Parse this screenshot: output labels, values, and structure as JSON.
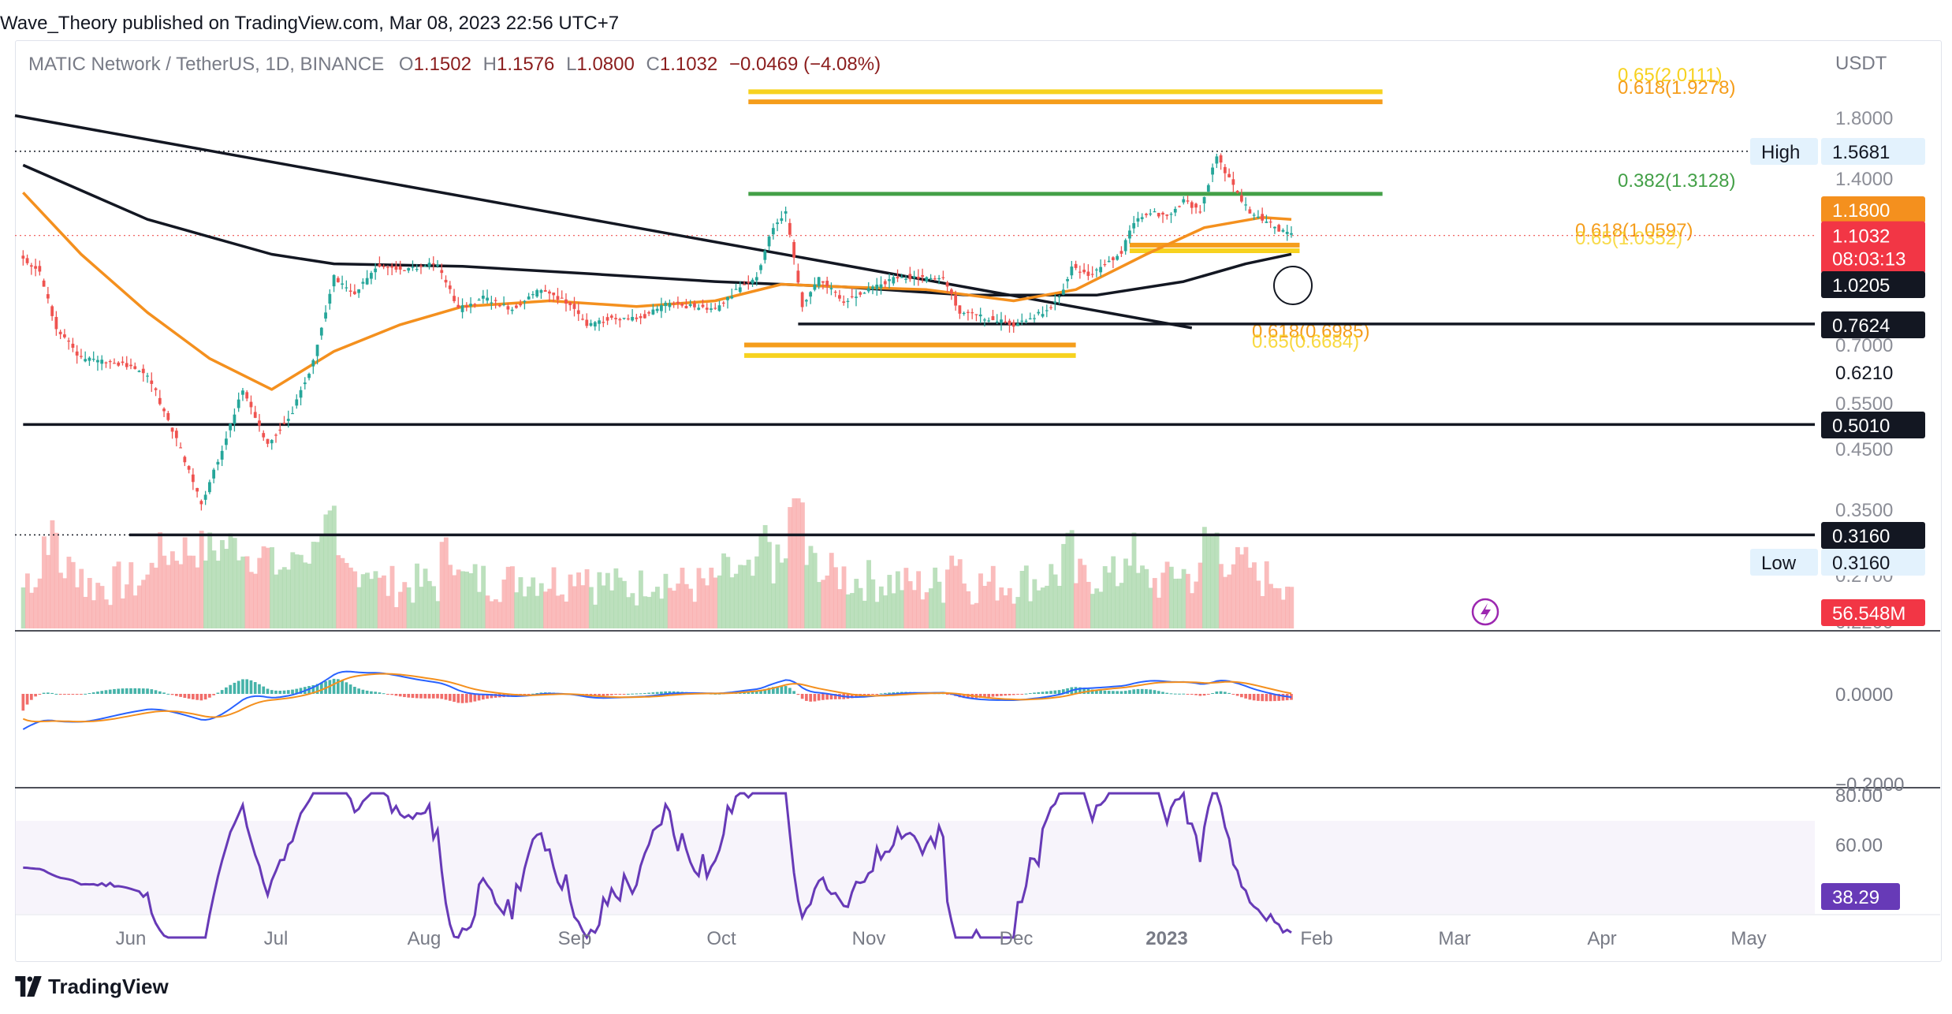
{
  "header": {
    "publisher": "Wave_Theory published on TradingView.com, Mar 08, 2023 22:56 UTC+7"
  },
  "ohlc_bar": {
    "symbol": "MATIC Network / TetherUS, 1D, BINANCE",
    "open_label": "O",
    "open": "1.1502",
    "high_label": "H",
    "high": "1.1576",
    "low_label": "L",
    "low": "1.0800",
    "close_label": "C",
    "close": "1.1032",
    "change": "−0.0469 (−4.08%)"
  },
  "price_axis": {
    "currency": "USDT",
    "ticks": [
      "1.8000",
      "1.4000",
      "0.7000",
      "0.5500",
      "0.4500",
      "0.3500",
      "0.2700",
      "0.2200"
    ],
    "plain_labels": [
      {
        "text": "0.6210",
        "price": 0.621
      }
    ],
    "tags": [
      {
        "name": "high",
        "prefix": "High",
        "text": "1.5681",
        "price": 1.5681,
        "style": "light"
      },
      {
        "name": "ema-orange",
        "text": "1.1800",
        "price": 1.18,
        "style": "orange"
      },
      {
        "name": "last-price",
        "text": "1.1032",
        "sub": "08:03:13",
        "price": 1.1032,
        "style": "red"
      },
      {
        "name": "ma-200",
        "text": "1.0205",
        "price": 1.0205,
        "style": "dark"
      },
      {
        "name": "support-0.7624",
        "text": "0.7624",
        "price": 0.7624,
        "style": "dark"
      },
      {
        "name": "support-0.5010",
        "text": "0.5010",
        "price": 0.501,
        "style": "dark"
      },
      {
        "name": "support-0.3160",
        "text": "0.3160",
        "price": 0.316,
        "style": "dark"
      },
      {
        "name": "low",
        "prefix": "Low",
        "text": "0.3160",
        "price": 0.316,
        "style": "light"
      },
      {
        "name": "volume",
        "text": "56.548M",
        "style": "red-vol"
      }
    ]
  },
  "macd_axis": {
    "ticks": [
      "0.0000",
      "−0.2000"
    ]
  },
  "rsi_axis": {
    "ticks": [
      "80.00",
      "60.00"
    ],
    "value_tag": "38.29"
  },
  "time_axis": {
    "labels": [
      "Jun",
      "Jul",
      "Aug",
      "Sep",
      "Oct",
      "Nov",
      "Dec",
      "2023",
      "Feb",
      "Mar",
      "Apr",
      "May"
    ]
  },
  "fib_labels": [
    {
      "text": "0.65(2.0111)",
      "color": "#f5c518"
    },
    {
      "text": "0.618(1.9278)",
      "color": "#f59d1b"
    },
    {
      "text": "0.382(1.3128)",
      "color": "#43a047"
    },
    {
      "text": "0.618(1.0597)",
      "color": "#f59d1b"
    },
    {
      "text": "0.65(1.0352)",
      "color": "#f5c518"
    },
    {
      "text": "0.618(0.6985)",
      "color": "#f59d1b"
    },
    {
      "text": "0.65(0.6684)",
      "color": "#f5c518"
    }
  ],
  "brand": {
    "name": "TradingView"
  },
  "colors": {
    "up": "#26a69a",
    "down": "#ef5350",
    "ema": "#f4901e",
    "ma": "#131722",
    "fib_gold": "#f7d21f",
    "fib_orange": "#f59d1b",
    "fib_green": "#43a047",
    "macd": "#2962ff",
    "signal": "#f4901e",
    "rsi": "#673ab7",
    "vol_up": "#a5d6a7",
    "vol_down": "#f8a5a5"
  },
  "chart_data": {
    "type": "candlestick",
    "symbol": "MATIC Network / TetherUS",
    "timeframe": "1D",
    "exchange": "BINANCE",
    "y_axis_label": "USDT",
    "ohlc_last": {
      "open": 1.1502,
      "high": 1.1576,
      "low": 1.08,
      "close": 1.1032,
      "change": -0.0469,
      "change_pct": -4.08
    },
    "x_range": [
      "2023-05-08",
      "2023-05-31"
    ],
    "price_path": [
      {
        "date": "2022-05-06",
        "close": 1.0
      },
      {
        "date": "2022-05-10",
        "close": 0.95
      },
      {
        "date": "2022-05-14",
        "close": 0.75
      },
      {
        "date": "2022-05-20",
        "close": 0.66
      },
      {
        "date": "2022-05-28",
        "close": 0.65
      },
      {
        "date": "2022-06-05",
        "close": 0.62
      },
      {
        "date": "2022-06-12",
        "close": 0.47
      },
      {
        "date": "2022-06-18",
        "close": 0.36
      },
      {
        "date": "2022-06-22",
        "close": 0.43
      },
      {
        "date": "2022-06-28",
        "close": 0.58
      },
      {
        "date": "2022-07-04",
        "close": 0.46
      },
      {
        "date": "2022-07-10",
        "close": 0.53
      },
      {
        "date": "2022-07-15",
        "close": 0.65
      },
      {
        "date": "2022-07-20",
        "close": 0.93
      },
      {
        "date": "2022-07-25",
        "close": 0.86
      },
      {
        "date": "2022-07-30",
        "close": 0.97
      },
      {
        "date": "2022-08-06",
        "close": 0.96
      },
      {
        "date": "2022-08-14",
        "close": 0.98
      },
      {
        "date": "2022-08-19",
        "close": 0.81
      },
      {
        "date": "2022-08-25",
        "close": 0.85
      },
      {
        "date": "2022-09-01",
        "close": 0.81
      },
      {
        "date": "2022-09-08",
        "close": 0.88
      },
      {
        "date": "2022-09-15",
        "close": 0.83
      },
      {
        "date": "2022-09-19",
        "close": 0.76
      },
      {
        "date": "2022-09-25",
        "close": 0.78
      },
      {
        "date": "2022-10-02",
        "close": 0.78
      },
      {
        "date": "2022-10-08",
        "close": 0.83
      },
      {
        "date": "2022-10-14",
        "close": 0.82
      },
      {
        "date": "2022-10-20",
        "close": 0.81
      },
      {
        "date": "2022-10-26",
        "close": 0.89
      },
      {
        "date": "2022-10-30",
        "close": 0.93
      },
      {
        "date": "2022-11-02",
        "close": 1.1
      },
      {
        "date": "2022-11-06",
        "close": 1.22
      },
      {
        "date": "2022-11-08",
        "close": 1.0
      },
      {
        "date": "2022-11-10",
        "close": 0.82
      },
      {
        "date": "2022-11-14",
        "close": 0.92
      },
      {
        "date": "2022-11-20",
        "close": 0.84
      },
      {
        "date": "2022-11-27",
        "close": 0.89
      },
      {
        "date": "2022-12-04",
        "close": 0.93
      },
      {
        "date": "2022-12-10",
        "close": 0.92
      },
      {
        "date": "2022-12-14",
        "close": 0.93
      },
      {
        "date": "2022-12-18",
        "close": 0.8
      },
      {
        "date": "2022-12-25",
        "close": 0.78
      },
      {
        "date": "2022-12-31",
        "close": 0.76
      },
      {
        "date": "2023-01-07",
        "close": 0.8
      },
      {
        "date": "2023-01-11",
        "close": 0.85
      },
      {
        "date": "2023-01-14",
        "close": 0.97
      },
      {
        "date": "2023-01-18",
        "close": 0.93
      },
      {
        "date": "2023-01-22",
        "close": 0.98
      },
      {
        "date": "2023-01-26",
        "close": 1.03
      },
      {
        "date": "2023-01-29",
        "close": 1.17
      },
      {
        "date": "2023-02-02",
        "close": 1.22
      },
      {
        "date": "2023-02-06",
        "close": 1.19
      },
      {
        "date": "2023-02-10",
        "close": 1.28
      },
      {
        "date": "2023-02-14",
        "close": 1.22
      },
      {
        "date": "2023-02-18",
        "close": 1.54
      },
      {
        "date": "2023-02-22",
        "close": 1.35
      },
      {
        "date": "2023-02-26",
        "close": 1.22
      },
      {
        "date": "2023-03-02",
        "close": 1.17
      },
      {
        "date": "2023-03-05",
        "close": 1.13
      },
      {
        "date": "2023-03-08",
        "close": 1.1032
      }
    ],
    "ema_path": [
      {
        "date": "2022-05-06",
        "value": 1.32
      },
      {
        "date": "2022-05-20",
        "value": 1.02
      },
      {
        "date": "2022-06-05",
        "value": 0.8
      },
      {
        "date": "2022-06-20",
        "value": 0.66
      },
      {
        "date": "2022-07-05",
        "value": 0.58
      },
      {
        "date": "2022-07-20",
        "value": 0.68
      },
      {
        "date": "2022-08-05",
        "value": 0.76
      },
      {
        "date": "2022-08-20",
        "value": 0.82
      },
      {
        "date": "2022-09-10",
        "value": 0.84
      },
      {
        "date": "2022-10-01",
        "value": 0.82
      },
      {
        "date": "2022-10-20",
        "value": 0.84
      },
      {
        "date": "2022-11-05",
        "value": 0.9
      },
      {
        "date": "2022-11-20",
        "value": 0.89
      },
      {
        "date": "2022-12-10",
        "value": 0.88
      },
      {
        "date": "2022-12-31",
        "value": 0.84
      },
      {
        "date": "2023-01-15",
        "value": 0.88
      },
      {
        "date": "2023-02-01",
        "value": 1.02
      },
      {
        "date": "2023-02-15",
        "value": 1.14
      },
      {
        "date": "2023-03-01",
        "value": 1.19
      },
      {
        "date": "2023-03-08",
        "value": 1.18
      }
    ],
    "ma_path": [
      {
        "date": "2022-05-06",
        "value": 1.48
      },
      {
        "date": "2022-06-05",
        "value": 1.18
      },
      {
        "date": "2022-07-05",
        "value": 1.02
      },
      {
        "date": "2022-07-20",
        "value": 0.98
      },
      {
        "date": "2022-08-20",
        "value": 0.97
      },
      {
        "date": "2022-09-20",
        "value": 0.94
      },
      {
        "date": "2022-10-20",
        "value": 0.91
      },
      {
        "date": "2022-11-20",
        "value": 0.89
      },
      {
        "date": "2022-12-20",
        "value": 0.86
      },
      {
        "date": "2023-01-20",
        "value": 0.86
      },
      {
        "date": "2023-02-10",
        "value": 0.91
      },
      {
        "date": "2023-02-25",
        "value": 0.98
      },
      {
        "date": "2023-03-08",
        "value": 1.0205
      }
    ],
    "trendline_descending": [
      {
        "date": "2022-05-06",
        "value": 1.82
      },
      {
        "date": "2023-02-12",
        "value": 0.75
      }
    ],
    "horizontal_levels": [
      {
        "value": 1.5681,
        "style": "dotted",
        "from": "2022-05-06"
      },
      {
        "value": 0.7624,
        "style": "solid",
        "from": "2022-11-09"
      },
      {
        "value": 0.501,
        "style": "solid",
        "from": "2022-05-06"
      },
      {
        "value": 0.316,
        "style": "dotted-then-solid",
        "from": "2022-05-06"
      }
    ],
    "fib_zones": [
      {
        "from": "2022-10-28",
        "to": "2023-03-30",
        "levels": [
          2.0111,
          1.9278
        ]
      },
      {
        "from": "2022-10-28",
        "to": "2023-03-30",
        "levels": [
          1.3128
        ]
      },
      {
        "from": "2023-01-28",
        "to": "2023-03-10",
        "levels": [
          1.0597,
          1.0352
        ]
      },
      {
        "from": "2022-10-27",
        "to": "2023-01-15",
        "levels": [
          0.6985,
          0.6684
        ]
      }
    ],
    "last_volume": "56.548M",
    "rsi_last": 38.29,
    "macd_zero_line": 0.0
  }
}
